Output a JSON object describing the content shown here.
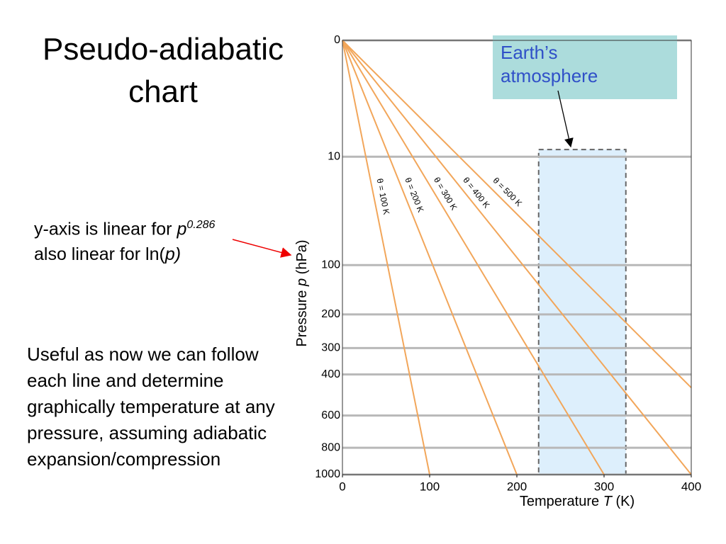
{
  "title": "Pseudo-adiabatic chart",
  "note1": {
    "line1": "y-axis is linear for ",
    "var": "p",
    "line2_start": "also linear for ln(",
    "line2_var": "p",
    "line2_end": ")"
  },
  "note2": "Useful as now we can follow each line and determine graphically temperature at any pressure, assuming adiabatic expansion/compression",
  "chart_data": {
    "type": "line",
    "xlabel": [
      "Temperature ",
      "T",
      " (K)"
    ],
    "ylabel": [
      "Pressure ",
      "p",
      " (hPa)"
    ],
    "xlim": [
      0,
      400
    ],
    "xticks": [
      0,
      100,
      200,
      300,
      400
    ],
    "ylim": [
      0,
      1000
    ],
    "yticks": [
      0,
      10,
      100,
      200,
      300,
      400,
      600,
      800,
      1000
    ],
    "yscale": "power",
    "yexponent": 0.286,
    "yinvert": true,
    "grid": true,
    "series": [
      {
        "name": "θ = 100 K",
        "color": "#f2a65a",
        "x": [
          0,
          100
        ],
        "values": [
          0,
          1000
        ]
      },
      {
        "name": "θ = 200 K",
        "color": "#f2a65a",
        "x": [
          0,
          200
        ],
        "values": [
          0,
          1000
        ]
      },
      {
        "name": "θ = 300 K",
        "color": "#f2a65a",
        "x": [
          0,
          300
        ],
        "values": [
          0,
          1000
        ]
      },
      {
        "name": "θ = 400 K",
        "color": "#f2a65a",
        "x": [
          0,
          400
        ],
        "values": [
          0,
          1000
        ]
      },
      {
        "name": "θ = 500 K",
        "color": "#f2a65a",
        "x": [
          0,
          400
        ],
        "values": [
          0,
          458
        ]
      }
    ],
    "region": {
      "label": "Earth’s atmosphere",
      "x": [
        225,
        325
      ],
      "y": [
        8,
        1000
      ]
    }
  }
}
